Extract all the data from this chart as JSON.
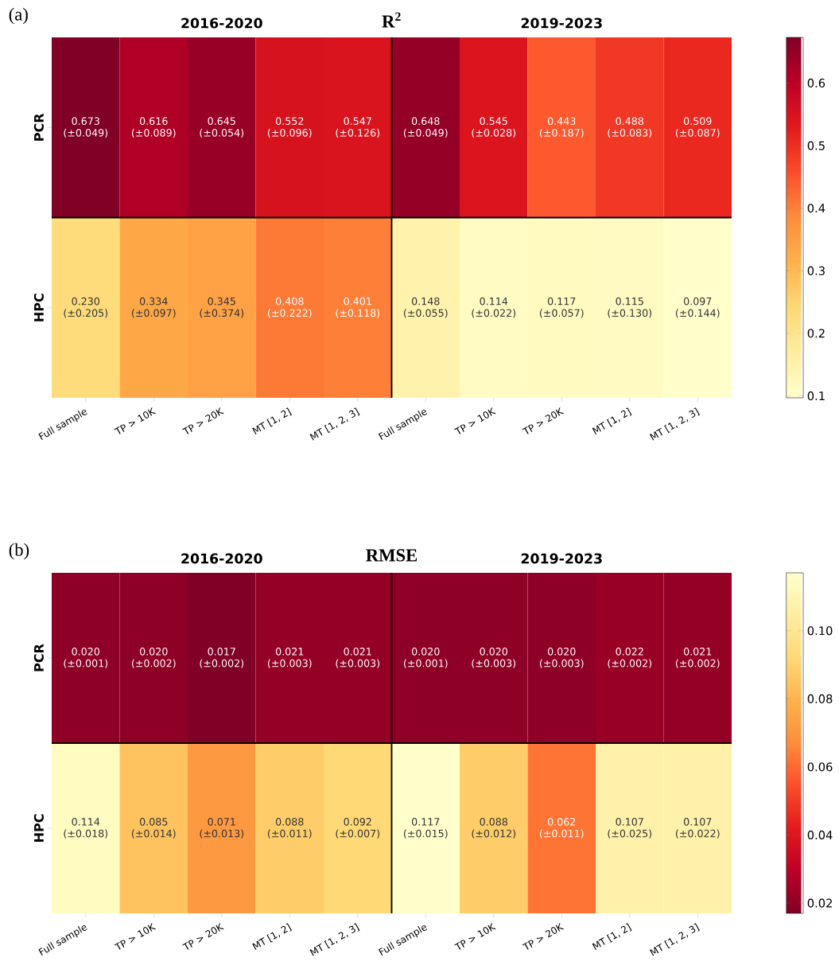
{
  "chart_data": [
    {
      "type": "heatmap",
      "title": "R$^{2}$",
      "annotations": [
        "(a)",
        "2016-2020",
        "2019-2023"
      ],
      "categories": [
        "Full sample",
        "TP > 10K",
        "TP > 20K",
        "MT [1, 2]",
        "MT [1, 2, 3]",
        "Full sample",
        "TP > 10K",
        "TP > 20K",
        "MT [1, 2]",
        "MT [1, 2, 3]"
      ],
      "y_categories": [
        "PCR",
        "HPC"
      ],
      "cells": [
        [
          0.673,
          0.616,
          0.645,
          0.552,
          0.547,
          0.648,
          0.545,
          0.443,
          0.488,
          0.509
        ],
        [
          0.23,
          0.334,
          0.345,
          0.408,
          0.401,
          0.148,
          0.114,
          0.117,
          0.115,
          0.097
        ]
      ],
      "cell_labels": [
        [
          "0.673 (±0.049)",
          "0.616 (±0.089)",
          "0.645 (±0.054)",
          "0.552 (±0.096)",
          "0.547 (±0.126)",
          "0.648 (±0.049)",
          "0.545 (±0.028)",
          "0.443 (±0.187)",
          "0.488 (±0.083)",
          "0.509 (±0.087)"
        ],
        [
          "0.230 (±0.205)",
          "0.334 (±0.097)",
          "0.345 (±0.374)",
          "0.408 (±0.222)",
          "0.401 (±0.118)",
          "0.148 (±0.055)",
          "0.114 (±0.022)",
          "0.117 (±0.057)",
          "0.115 (±0.130)",
          "0.097 (±0.144)"
        ]
      ],
      "clim": [
        0.097,
        0.673
      ],
      "cticks": [
        0.1,
        0.2,
        0.3,
        0.4,
        0.5,
        0.6
      ]
    },
    {
      "type": "heatmap",
      "title": "RMSE",
      "annotations": [
        "(b)",
        "2016-2020",
        "2019-2023"
      ],
      "categories": [
        "Full sample",
        "TP > 10K",
        "TP > 20K",
        "MT [1, 2]",
        "MT [1, 2, 3]",
        "Full sample",
        "TP > 10K",
        "TP > 20K",
        "MT [1, 2]",
        "MT [1, 2, 3]"
      ],
      "y_categories": [
        "PCR",
        "HPC"
      ],
      "cells": [
        [
          0.02,
          0.02,
          0.017,
          0.021,
          0.021,
          0.02,
          0.02,
          0.02,
          0.022,
          0.021
        ],
        [
          0.114,
          0.085,
          0.071,
          0.088,
          0.092,
          0.117,
          0.088,
          0.062,
          0.107,
          0.107
        ]
      ],
      "cell_labels": [
        [
          "0.020 (±0.001)",
          "0.020 (±0.002)",
          "0.017 (±0.002)",
          "0.021 (±0.003)",
          "0.021 (±0.003)",
          "0.020 (±0.001)",
          "0.020 (±0.003)",
          "0.020 (±0.003)",
          "0.022 (±0.002)",
          "0.021 (±0.002)"
        ],
        [
          "0.114 (±0.018)",
          "0.085 (±0.014)",
          "0.071 (±0.013)",
          "0.088 (±0.011)",
          "0.092 (±0.007)",
          "0.117 (±0.015)",
          "0.088 (±0.012)",
          "0.062 (±0.011)",
          "0.107 (±0.025)",
          "0.107 (±0.022)"
        ]
      ],
      "clim": [
        0.017,
        0.117
      ],
      "cticks": [
        0.02,
        0.04,
        0.06,
        0.08,
        {
          "value": 0.1,
          "label": "0.10"
        }
      ]
    }
  ]
}
